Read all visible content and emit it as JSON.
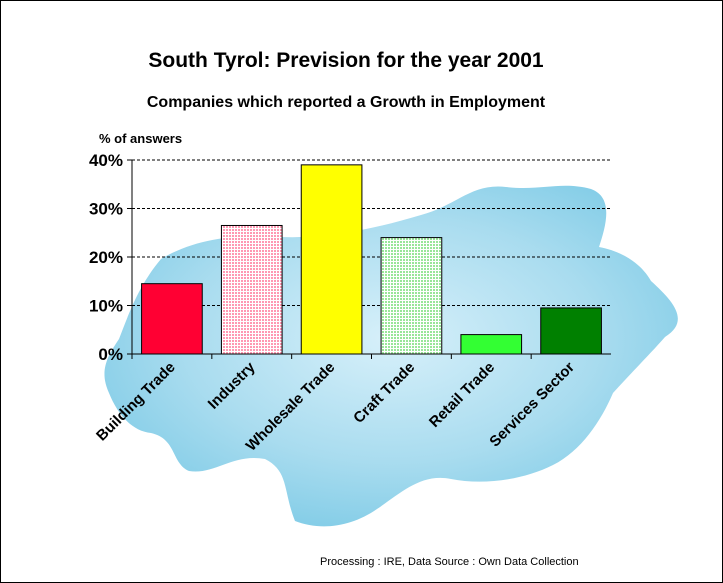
{
  "chart_data": {
    "type": "bar",
    "title": "South Tyrol: Prevision for the year 2001",
    "subtitle": "Companies which reported a Growth in Employment",
    "ylabel": "% of answers",
    "xlabel": "",
    "ylim": [
      0,
      40
    ],
    "y_ticks": [
      "0%",
      "10%",
      "20%",
      "30%",
      "40%"
    ],
    "grid": true,
    "categories": [
      "Building Trade",
      "Industry",
      "Wholesale Trade",
      "Craft Trade",
      "Retail Trade",
      "Services Sector"
    ],
    "values": [
      14.5,
      26.5,
      39,
      24,
      4,
      9.5
    ],
    "colors": [
      "#ff0033",
      "#ffccdd",
      "#ffff00",
      "#ccffcc",
      "#33ff33",
      "#008000"
    ],
    "patterns": [
      "solid",
      "dotted",
      "solid",
      "dotted",
      "solid",
      "solid"
    ],
    "source_note": "Processing : IRE, Data Source : Own Data Collection"
  },
  "colors": {
    "map_fill": "#a9dcef",
    "map_edge": "#cfeef8"
  }
}
